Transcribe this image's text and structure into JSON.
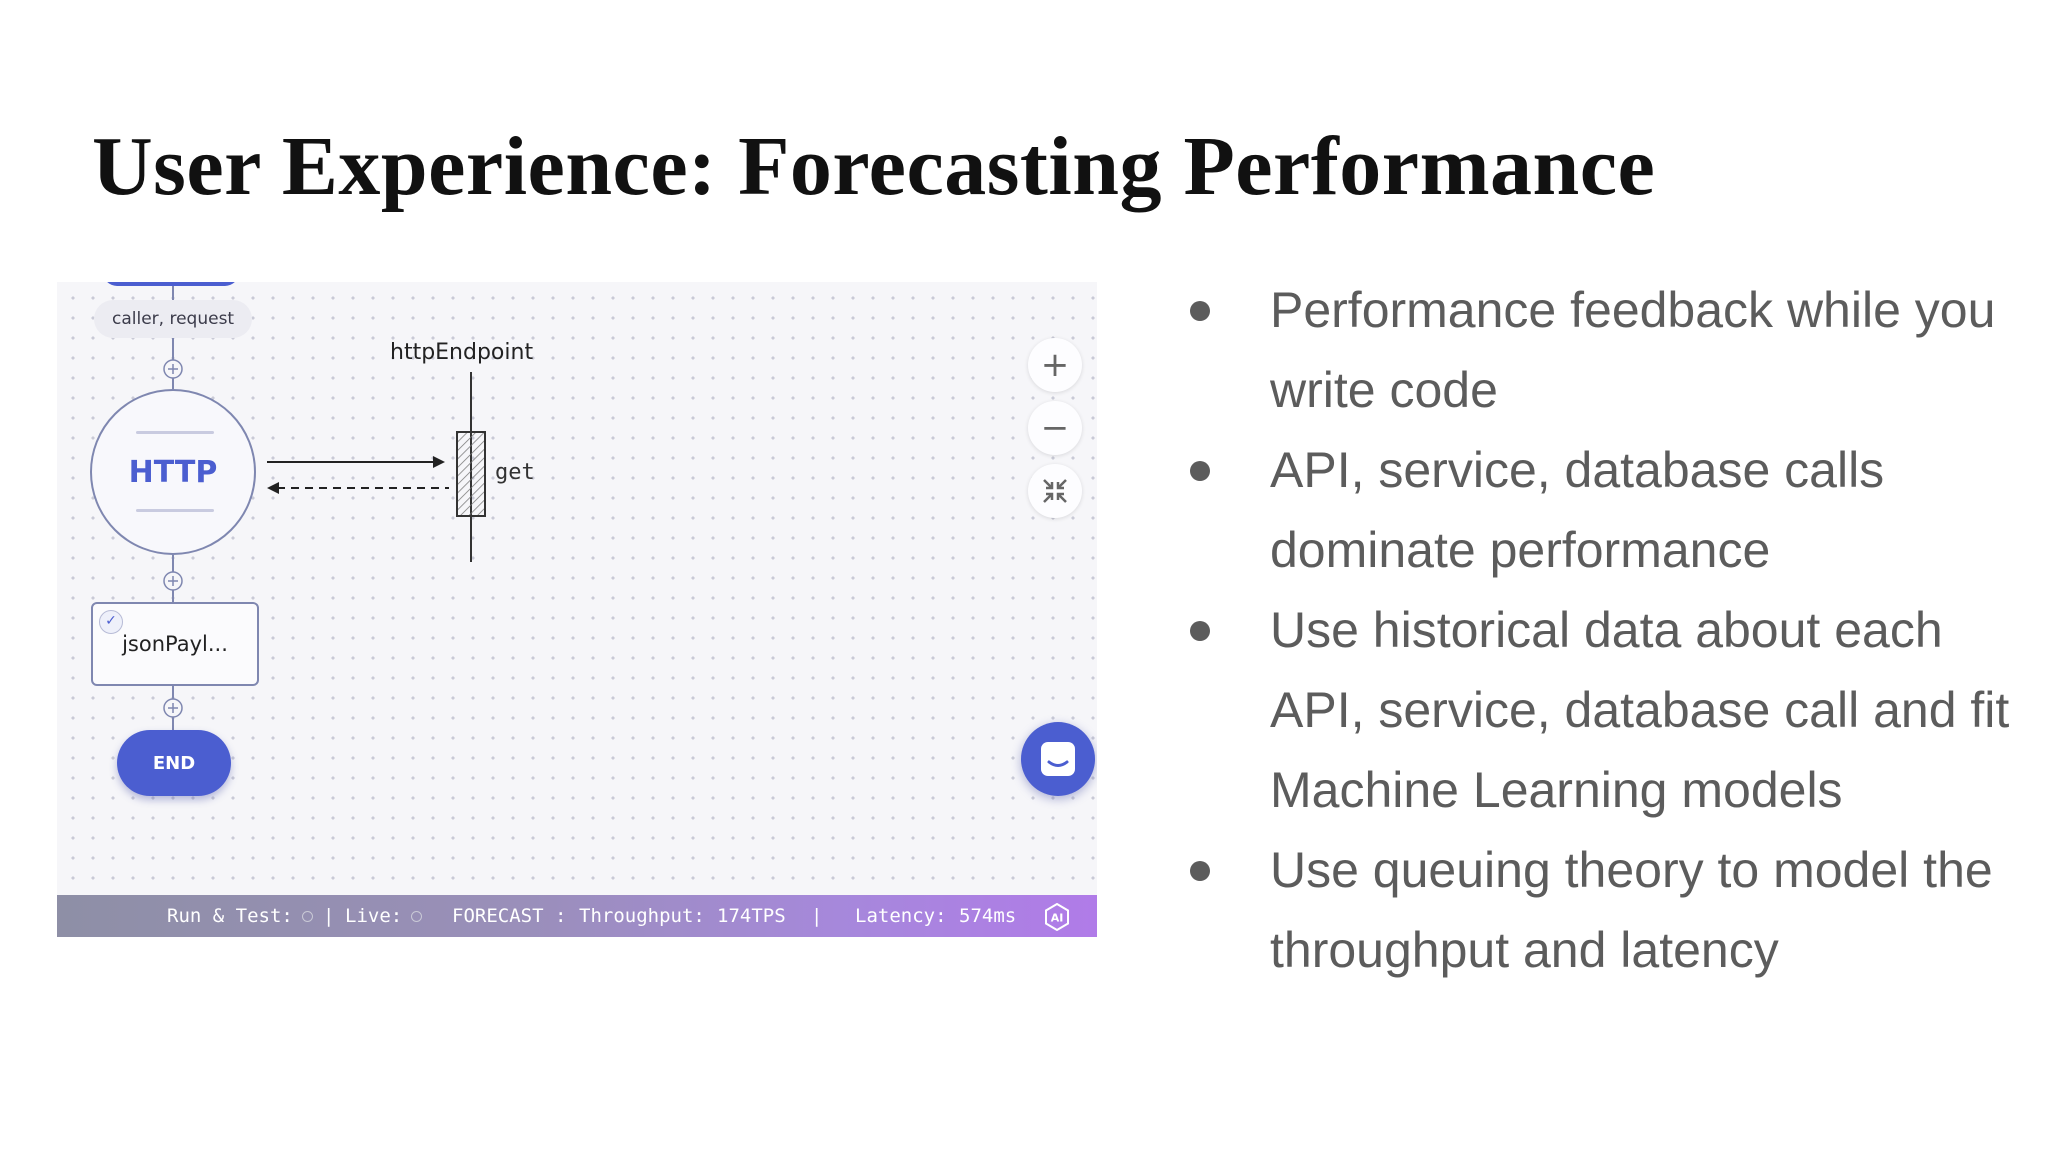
{
  "slide": {
    "title": "User Experience: Forecasting Performance"
  },
  "flow": {
    "param_chip": "caller, request",
    "start_node": "HTTP",
    "endpoint_name": "httpEndpoint",
    "endpoint_action": "get",
    "payload_node": "jsonPayl...",
    "end_node": "END"
  },
  "controls": {
    "zoom_in": "+",
    "zoom_out": "−",
    "fit_icon": "compress-arrows-icon",
    "chat_icon": "chat-bubble-icon"
  },
  "status_bar": {
    "run_test_label": "Run & Test:",
    "separator": "|",
    "live_label": "Live:",
    "forecast_label": "FORECAST",
    "throughput_label": "Throughput:",
    "throughput_value": "174TPS",
    "latency_label": "Latency:",
    "latency_value": "574ms",
    "ai_badge": "AI"
  },
  "bullets": [
    "Performance feedback while you write code",
    "API, service, database calls dominate performance",
    "Use historical data about each API, service, database call and fit Machine Learning models",
    "Use queuing theory to model the throughput and latency"
  ],
  "colors": {
    "accent": "#4b5ed0",
    "bullet_text": "#5c5c5c",
    "title_text": "#111111"
  }
}
